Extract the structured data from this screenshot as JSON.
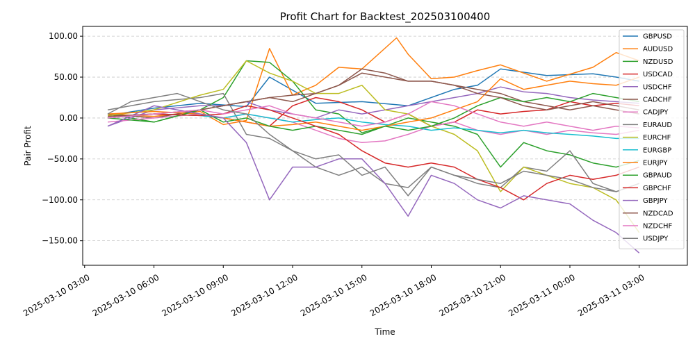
{
  "chart_data": {
    "type": "line",
    "title": "Profit Chart for Backtest_202503100400",
    "xlabel": "Time",
    "ylabel": "Pair Profit",
    "xlim": [
      "2025-03-10T02:55:00",
      "2025-03-11T05:05:00"
    ],
    "ylim": [
      -180,
      112
    ],
    "x_ticks": [
      "2025-03-10T03:00:00",
      "2025-03-10T06:00:00",
      "2025-03-10T09:00:00",
      "2025-03-10T12:00:00",
      "2025-03-10T15:00:00",
      "2025-03-10T18:00:00",
      "2025-03-10T21:00:00",
      "2025-03-11T00:00:00",
      "2025-03-11T03:00:00"
    ],
    "x_tick_labels": [
      "2025-03-10 03:00",
      "2025-03-10 06:00",
      "2025-03-10 09:00",
      "2025-03-10 12:00",
      "2025-03-10 15:00",
      "2025-03-10 18:00",
      "2025-03-10 21:00",
      "2025-03-11 00:00",
      "2025-03-11 03:00"
    ],
    "y_ticks": [
      100,
      50,
      0,
      -50,
      -100,
      -150
    ],
    "y_tick_labels": [
      "100.00",
      "50.00",
      "0.00",
      "−50.00",
      "−100.00",
      "−150.00"
    ],
    "grid": "y-dashed",
    "legend": "upper right",
    "series": [
      {
        "name": "GBPUSD",
        "color": "#1f77b4",
        "x": [
          "2025-03-10T04:00",
          "2025-03-10T06:00",
          "2025-03-10T08:00",
          "2025-03-10T10:00",
          "2025-03-10T11:00",
          "2025-03-10T13:00",
          "2025-03-10T15:00",
          "2025-03-10T17:00",
          "2025-03-10T19:00",
          "2025-03-10T20:00",
          "2025-03-10T21:00",
          "2025-03-10T23:00",
          "2025-03-11T01:00",
          "2025-03-11T02:00",
          "2025-03-11T03:00"
        ],
        "y": [
          3,
          12,
          18,
          14,
          50,
          18,
          20,
          15,
          35,
          40,
          60,
          52,
          54,
          50,
          45
        ]
      },
      {
        "name": "AUDUSD",
        "color": "#ff7f0e",
        "x": [
          "2025-03-10T04:00",
          "2025-03-10T06:00",
          "2025-03-10T08:00",
          "2025-03-10T09:00",
          "2025-03-10T10:00",
          "2025-03-10T11:00",
          "2025-03-10T12:00",
          "2025-03-10T13:00",
          "2025-03-10T14:00",
          "2025-03-10T15:00",
          "2025-03-10T16:30",
          "2025-03-10T17:00",
          "2025-03-10T18:00",
          "2025-03-10T19:00",
          "2025-03-10T20:00",
          "2025-03-10T21:00",
          "2025-03-10T23:00",
          "2025-03-11T01:00",
          "2025-03-11T02:00",
          "2025-03-11T03:00"
        ],
        "y": [
          5,
          2,
          8,
          -8,
          -3,
          85,
          28,
          40,
          62,
          60,
          98,
          78,
          48,
          50,
          58,
          65,
          45,
          62,
          80,
          70
        ]
      },
      {
        "name": "NZDUSD",
        "color": "#2ca02c",
        "x": [
          "2025-03-10T04:00",
          "2025-03-10T06:00",
          "2025-03-10T08:00",
          "2025-03-10T09:00",
          "2025-03-10T10:00",
          "2025-03-10T11:00",
          "2025-03-10T12:00",
          "2025-03-10T13:00",
          "2025-03-10T14:00",
          "2025-03-10T15:00",
          "2025-03-10T16:00",
          "2025-03-10T17:00",
          "2025-03-10T18:00",
          "2025-03-10T19:00",
          "2025-03-10T20:00",
          "2025-03-10T21:00",
          "2025-03-10T22:00",
          "2025-03-10T23:00",
          "2025-03-11T00:00",
          "2025-03-11T01:00",
          "2025-03-11T02:00",
          "2025-03-11T03:00"
        ],
        "y": [
          5,
          -5,
          10,
          25,
          70,
          68,
          45,
          10,
          5,
          -18,
          -10,
          0,
          -5,
          -10,
          -20,
          -60,
          -30,
          -40,
          -45,
          -55,
          -60,
          -52
        ]
      },
      {
        "name": "USDCAD",
        "color": "#d62728",
        "x": [
          "2025-03-10T04:00",
          "2025-03-10T06:00",
          "2025-03-10T08:00",
          "2025-03-10T09:00",
          "2025-03-10T10:00",
          "2025-03-10T11:00",
          "2025-03-10T12:00",
          "2025-03-10T13:00",
          "2025-03-10T14:00",
          "2025-03-10T15:00",
          "2025-03-10T16:00",
          "2025-03-10T17:00",
          "2025-03-10T18:00",
          "2025-03-10T19:00",
          "2025-03-10T20:00",
          "2025-03-10T21:00",
          "2025-03-10T22:00",
          "2025-03-10T23:00",
          "2025-03-11T00:00",
          "2025-03-11T01:00",
          "2025-03-11T02:00",
          "2025-03-11T03:00"
        ],
        "y": [
          0,
          5,
          3,
          0,
          -5,
          -10,
          15,
          25,
          20,
          10,
          -5,
          5,
          -10,
          -5,
          10,
          5,
          8,
          10,
          20,
          15,
          18,
          15
        ]
      },
      {
        "name": "USDCHF",
        "color": "#9467bd",
        "x": [
          "2025-03-10T04:00",
          "2025-03-10T06:00",
          "2025-03-10T08:00",
          "2025-03-10T09:00",
          "2025-03-10T10:00",
          "2025-03-10T11:00",
          "2025-03-10T12:00",
          "2025-03-10T13:00",
          "2025-03-10T14:00",
          "2025-03-10T15:00",
          "2025-03-10T16:00",
          "2025-03-10T17:00",
          "2025-03-10T18:00",
          "2025-03-10T19:00",
          "2025-03-10T20:00",
          "2025-03-10T21:00",
          "2025-03-10T22:00",
          "2025-03-10T23:00",
          "2025-03-11T00:00",
          "2025-03-11T01:00",
          "2025-03-11T02:00",
          "2025-03-11T03:00"
        ],
        "y": [
          -10,
          10,
          15,
          15,
          20,
          10,
          5,
          0,
          10,
          5,
          10,
          15,
          20,
          25,
          30,
          38,
          32,
          30,
          25,
          22,
          20,
          18
        ]
      },
      {
        "name": "CADCHF",
        "color": "#8c564b",
        "x": [
          "2025-03-10T04:00",
          "2025-03-10T06:00",
          "2025-03-10T08:00",
          "2025-03-10T09:00",
          "2025-03-10T10:00",
          "2025-03-10T11:00",
          "2025-03-10T12:00",
          "2025-03-10T13:00",
          "2025-03-10T14:00",
          "2025-03-10T15:00",
          "2025-03-10T16:00",
          "2025-03-10T17:00",
          "2025-03-10T18:00",
          "2025-03-10T19:00",
          "2025-03-10T20:00",
          "2025-03-10T21:00",
          "2025-03-10T22:00",
          "2025-03-10T23:00",
          "2025-03-11T00:00",
          "2025-03-11T01:00",
          "2025-03-11T02:00",
          "2025-03-11T03:00"
        ],
        "y": [
          5,
          0,
          10,
          15,
          20,
          25,
          28,
          30,
          40,
          60,
          55,
          45,
          45,
          40,
          35,
          30,
          20,
          15,
          10,
          15,
          10,
          5
        ]
      },
      {
        "name": "CADJPY",
        "color": "#e377c2",
        "x": [
          "2025-03-10T04:00",
          "2025-03-10T06:00",
          "2025-03-10T08:00",
          "2025-03-10T09:00",
          "2025-03-10T10:00",
          "2025-03-10T11:00",
          "2025-03-10T12:00",
          "2025-03-10T13:00",
          "2025-03-10T14:00",
          "2025-03-10T15:00",
          "2025-03-10T16:00",
          "2025-03-10T17:00",
          "2025-03-10T18:00",
          "2025-03-10T19:00",
          "2025-03-10T20:00",
          "2025-03-10T21:00",
          "2025-03-10T22:00",
          "2025-03-10T23:00",
          "2025-03-11T00:00",
          "2025-03-11T01:00",
          "2025-03-11T02:00",
          "2025-03-11T03:00"
        ],
        "y": [
          -5,
          0,
          5,
          0,
          5,
          0,
          -5,
          -15,
          -25,
          -30,
          -28,
          -20,
          -10,
          -5,
          -15,
          -20,
          -15,
          -20,
          -15,
          -18,
          -20,
          -15
        ]
      },
      {
        "name": "EURAUD",
        "color": "#7f7f7f",
        "x": [
          "2025-03-10T04:00",
          "2025-03-10T06:00",
          "2025-03-10T08:00",
          "2025-03-10T09:00",
          "2025-03-10T10:00",
          "2025-03-10T11:00",
          "2025-03-10T12:00",
          "2025-03-10T13:00",
          "2025-03-10T14:00",
          "2025-03-10T15:00",
          "2025-03-10T16:00",
          "2025-03-10T17:00",
          "2025-03-10T18:00",
          "2025-03-10T19:00",
          "2025-03-10T20:00",
          "2025-03-10T21:00",
          "2025-03-10T22:00",
          "2025-03-10T23:00",
          "2025-03-11T00:00",
          "2025-03-11T01:00",
          "2025-03-11T02:00",
          "2025-03-11T03:00"
        ],
        "y": [
          10,
          20,
          25,
          30,
          -20,
          -25,
          -40,
          -60,
          -70,
          -60,
          -80,
          -85,
          -60,
          -70,
          -80,
          -85,
          -60,
          -65,
          -40,
          -80,
          -90,
          -80
        ]
      },
      {
        "name": "EURCHF",
        "color": "#bcbd22",
        "x": [
          "2025-03-10T04:00",
          "2025-03-10T06:00",
          "2025-03-10T08:00",
          "2025-03-10T09:00",
          "2025-03-10T10:00",
          "2025-03-10T11:00",
          "2025-03-10T12:00",
          "2025-03-10T13:00",
          "2025-03-10T14:00",
          "2025-03-10T15:00",
          "2025-03-10T16:00",
          "2025-03-10T17:00",
          "2025-03-10T18:00",
          "2025-03-10T19:00",
          "2025-03-10T20:00",
          "2025-03-10T21:00",
          "2025-03-10T22:00",
          "2025-03-10T23:00",
          "2025-03-11T00:00",
          "2025-03-11T01:00",
          "2025-03-11T02:00",
          "2025-03-11T03:00"
        ],
        "y": [
          3,
          10,
          28,
          35,
          70,
          55,
          45,
          30,
          30,
          40,
          10,
          5,
          -10,
          -20,
          -40,
          -90,
          -60,
          -70,
          -80,
          -85,
          -100,
          -140
        ]
      },
      {
        "name": "EURGBP",
        "color": "#17becf",
        "x": [
          "2025-03-10T04:00",
          "2025-03-10T06:00",
          "2025-03-10T08:00",
          "2025-03-10T09:00",
          "2025-03-10T10:00",
          "2025-03-10T11:00",
          "2025-03-10T12:00",
          "2025-03-10T13:00",
          "2025-03-10T14:00",
          "2025-03-10T15:00",
          "2025-03-10T16:00",
          "2025-03-10T17:00",
          "2025-03-10T18:00",
          "2025-03-10T19:00",
          "2025-03-10T20:00",
          "2025-03-10T21:00",
          "2025-03-10T22:00",
          "2025-03-10T23:00",
          "2025-03-11T00:00",
          "2025-03-11T01:00",
          "2025-03-11T02:00",
          "2025-03-11T03:00"
        ],
        "y": [
          0,
          5,
          3,
          0,
          5,
          0,
          -5,
          -2,
          0,
          -5,
          -8,
          -10,
          -15,
          -12,
          -15,
          -18,
          -15,
          -18,
          -20,
          -22,
          -25,
          -25
        ]
      },
      {
        "name": "EURJPY",
        "color": "#ff7f0e",
        "x": [
          "2025-03-10T04:00",
          "2025-03-10T06:00",
          "2025-03-10T08:00",
          "2025-03-10T09:00",
          "2025-03-10T10:00",
          "2025-03-10T11:00",
          "2025-03-10T12:00",
          "2025-03-10T13:00",
          "2025-03-10T14:00",
          "2025-03-10T15:00",
          "2025-03-10T16:00",
          "2025-03-10T17:00",
          "2025-03-10T18:00",
          "2025-03-10T19:00",
          "2025-03-10T20:00",
          "2025-03-10T21:00",
          "2025-03-10T22:00",
          "2025-03-10T23:00",
          "2025-03-11T00:00",
          "2025-03-11T01:00",
          "2025-03-11T02:00",
          "2025-03-11T03:00"
        ],
        "y": [
          5,
          8,
          5,
          0,
          -5,
          -10,
          -8,
          -5,
          -10,
          -15,
          -10,
          -5,
          0,
          10,
          20,
          48,
          35,
          40,
          45,
          42,
          40,
          50
        ]
      },
      {
        "name": "GBPAUD",
        "color": "#2ca02c",
        "x": [
          "2025-03-10T04:00",
          "2025-03-10T06:00",
          "2025-03-10T08:00",
          "2025-03-10T09:00",
          "2025-03-10T10:00",
          "2025-03-10T11:00",
          "2025-03-10T12:00",
          "2025-03-10T13:00",
          "2025-03-10T14:00",
          "2025-03-10T15:00",
          "2025-03-10T16:00",
          "2025-03-10T17:00",
          "2025-03-10T18:00",
          "2025-03-10T19:00",
          "2025-03-10T20:00",
          "2025-03-10T21:00",
          "2025-03-10T22:00",
          "2025-03-10T23:00",
          "2025-03-11T00:00",
          "2025-03-11T01:00",
          "2025-03-11T02:00",
          "2025-03-11T03:00"
        ],
        "y": [
          0,
          -5,
          10,
          -5,
          0,
          -10,
          -15,
          -10,
          -15,
          -20,
          -10,
          -15,
          -10,
          0,
          15,
          25,
          20,
          25,
          20,
          30,
          25,
          20
        ]
      },
      {
        "name": "GBPCHF",
        "color": "#d62728",
        "x": [
          "2025-03-10T04:00",
          "2025-03-10T06:00",
          "2025-03-10T08:00",
          "2025-03-10T09:00",
          "2025-03-10T10:00",
          "2025-03-10T11:00",
          "2025-03-10T12:00",
          "2025-03-10T13:00",
          "2025-03-10T14:00",
          "2025-03-10T15:00",
          "2025-03-10T16:00",
          "2025-03-10T17:00",
          "2025-03-10T18:00",
          "2025-03-10T19:00",
          "2025-03-10T20:00",
          "2025-03-10T21:00",
          "2025-03-10T22:00",
          "2025-03-10T23:00",
          "2025-03-11T00:00",
          "2025-03-11T01:00",
          "2025-03-11T02:00",
          "2025-03-11T03:00"
        ],
        "y": [
          2,
          5,
          3,
          5,
          15,
          10,
          0,
          -10,
          -20,
          -40,
          -55,
          -60,
          -55,
          -60,
          -75,
          -85,
          -100,
          -80,
          -70,
          -75,
          -70,
          -60
        ]
      },
      {
        "name": "GBPJPY",
        "color": "#9467bd",
        "x": [
          "2025-03-10T04:00",
          "2025-03-10T06:00",
          "2025-03-10T08:00",
          "2025-03-10T09:00",
          "2025-03-10T10:00",
          "2025-03-10T11:00",
          "2025-03-10T12:00",
          "2025-03-10T13:00",
          "2025-03-10T14:00",
          "2025-03-10T15:00",
          "2025-03-10T16:00",
          "2025-03-10T17:00",
          "2025-03-10T18:00",
          "2025-03-10T19:00",
          "2025-03-10T20:00",
          "2025-03-10T21:00",
          "2025-03-10T22:00",
          "2025-03-10T23:00",
          "2025-03-11T00:00",
          "2025-03-11T01:00",
          "2025-03-11T02:00",
          "2025-03-11T03:00"
        ],
        "y": [
          -10,
          15,
          5,
          0,
          -30,
          -100,
          -60,
          -60,
          -50,
          -50,
          -80,
          -120,
          -70,
          -80,
          -100,
          -110,
          -95,
          -100,
          -105,
          -125,
          -140,
          -165
        ]
      },
      {
        "name": "NZDCAD",
        "color": "#8c564b",
        "x": [
          "2025-03-10T04:00",
          "2025-03-10T06:00",
          "2025-03-10T08:00",
          "2025-03-10T09:00",
          "2025-03-10T10:00",
          "2025-03-10T11:00",
          "2025-03-10T12:00",
          "2025-03-10T13:00",
          "2025-03-10T14:00",
          "2025-03-10T15:00",
          "2025-03-10T16:00",
          "2025-03-10T17:00",
          "2025-03-10T18:00",
          "2025-03-10T19:00",
          "2025-03-10T20:00",
          "2025-03-10T21:00",
          "2025-03-10T22:00",
          "2025-03-10T23:00",
          "2025-03-11T00:00",
          "2025-03-11T01:00",
          "2025-03-11T02:00",
          "2025-03-11T03:00"
        ],
        "y": [
          2,
          5,
          10,
          15,
          20,
          25,
          20,
          30,
          40,
          55,
          50,
          45,
          45,
          40,
          30,
          25,
          15,
          10,
          15,
          20,
          15,
          10
        ]
      },
      {
        "name": "NZDCHF",
        "color": "#e377c2",
        "x": [
          "2025-03-10T04:00",
          "2025-03-10T06:00",
          "2025-03-10T08:00",
          "2025-03-10T09:00",
          "2025-03-10T10:00",
          "2025-03-10T11:00",
          "2025-03-10T12:00",
          "2025-03-10T13:00",
          "2025-03-10T14:00",
          "2025-03-10T15:00",
          "2025-03-10T16:00",
          "2025-03-10T17:00",
          "2025-03-10T18:00",
          "2025-03-10T19:00",
          "2025-03-10T20:00",
          "2025-03-10T21:00",
          "2025-03-10T22:00",
          "2025-03-10T23:00",
          "2025-03-11T00:00",
          "2025-03-11T01:00",
          "2025-03-11T02:00",
          "2025-03-11T03:00"
        ],
        "y": [
          0,
          5,
          10,
          5,
          10,
          15,
          5,
          0,
          -5,
          -10,
          -5,
          5,
          20,
          15,
          5,
          -5,
          -10,
          -5,
          -10,
          -15,
          -10,
          -12
        ]
      },
      {
        "name": "USDJPY",
        "color": "#7f7f7f",
        "x": [
          "2025-03-10T04:00",
          "2025-03-10T05:00",
          "2025-03-10T07:00",
          "2025-03-10T09:00",
          "2025-03-10T10:00",
          "2025-03-10T11:00",
          "2025-03-10T12:00",
          "2025-03-10T13:00",
          "2025-03-10T14:00",
          "2025-03-10T15:00",
          "2025-03-10T16:00",
          "2025-03-10T17:00",
          "2025-03-10T18:00",
          "2025-03-10T19:00",
          "2025-03-10T20:00",
          "2025-03-10T21:00",
          "2025-03-10T22:00",
          "2025-03-10T23:00",
          "2025-03-11T00:00",
          "2025-03-11T01:00",
          "2025-03-11T02:00",
          "2025-03-11T03:00"
        ],
        "y": [
          5,
          20,
          30,
          10,
          5,
          -20,
          -40,
          -50,
          -45,
          -70,
          -60,
          -95,
          -60,
          -70,
          -75,
          -80,
          -65,
          -70,
          -75,
          -85,
          -90,
          -80
        ]
      }
    ]
  }
}
